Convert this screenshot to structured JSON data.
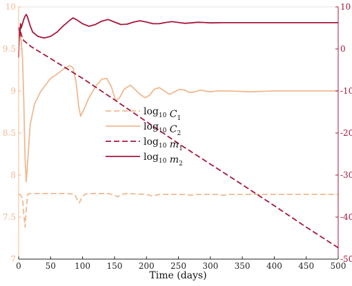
{
  "chart_data": {
    "type": "line",
    "xlabel": "Time (days)",
    "x_ticks": [
      0,
      50,
      100,
      150,
      200,
      250,
      300,
      350,
      400,
      450,
      500
    ],
    "x_range": [
      0,
      500
    ],
    "y_left": {
      "range": [
        7,
        10
      ],
      "ticks": [
        7,
        7.5,
        8,
        8.5,
        9,
        9.5,
        10
      ],
      "tick_labels": [
        "7",
        "7.5",
        "8",
        "8.5",
        "9",
        "9.5",
        "10"
      ],
      "color": "#f0b890"
    },
    "y_right": {
      "range": [
        -50,
        10
      ],
      "ticks": [
        -50,
        -40,
        -30,
        -20,
        -10,
        0,
        10
      ],
      "tick_labels": [
        "-50",
        "-40",
        "-30",
        "-20",
        "-10",
        "0",
        "10"
      ],
      "color": "#a5153a"
    },
    "grid": false,
    "legend_position": "center-left",
    "series": [
      {
        "name": "log10 C1",
        "legend_base": "log",
        "legend_base_sub": "10",
        "legend_var": "C",
        "legend_var_sub": "1",
        "axis": "left",
        "color": "#f0b890",
        "dash": "dashed",
        "points": [
          [
            0,
            7.77
          ],
          [
            2,
            7.77
          ],
          [
            4,
            7.75
          ],
          [
            6,
            7.72
          ],
          [
            8,
            7.55
          ],
          [
            10,
            7.38
          ],
          [
            12,
            7.6
          ],
          [
            14,
            7.77
          ],
          [
            18,
            7.78
          ],
          [
            25,
            7.78
          ],
          [
            50,
            7.78
          ],
          [
            75,
            7.78
          ],
          [
            88,
            7.77
          ],
          [
            92,
            7.7
          ],
          [
            95,
            7.67
          ],
          [
            98,
            7.72
          ],
          [
            103,
            7.77
          ],
          [
            110,
            7.78
          ],
          [
            140,
            7.78
          ],
          [
            150,
            7.76
          ],
          [
            155,
            7.74
          ],
          [
            160,
            7.77
          ],
          [
            170,
            7.78
          ],
          [
            200,
            7.77
          ],
          [
            210,
            7.75
          ],
          [
            220,
            7.77
          ],
          [
            260,
            7.77
          ],
          [
            270,
            7.76
          ],
          [
            280,
            7.77
          ],
          [
            310,
            7.77
          ],
          [
            320,
            7.76
          ],
          [
            330,
            7.77
          ],
          [
            500,
            7.77
          ]
        ]
      },
      {
        "name": "log10 C2",
        "legend_base": "log",
        "legend_base_sub": "10",
        "legend_var": "C",
        "legend_var_sub": "2",
        "axis": "left",
        "color": "#f0b890",
        "dash": "solid",
        "points": [
          [
            0,
            9.55
          ],
          [
            2,
            9.65
          ],
          [
            4,
            9.6
          ],
          [
            6,
            9.4
          ],
          [
            8,
            8.9
          ],
          [
            10,
            8.2
          ],
          [
            12,
            7.92
          ],
          [
            14,
            8.15
          ],
          [
            18,
            8.6
          ],
          [
            25,
            8.85
          ],
          [
            35,
            9.0
          ],
          [
            50,
            9.15
          ],
          [
            60,
            9.2
          ],
          [
            70,
            9.26
          ],
          [
            80,
            9.3
          ],
          [
            85,
            9.28
          ],
          [
            90,
            9.1
          ],
          [
            94,
            8.82
          ],
          [
            97,
            8.7
          ],
          [
            102,
            8.78
          ],
          [
            110,
            8.92
          ],
          [
            120,
            9.05
          ],
          [
            130,
            9.14
          ],
          [
            138,
            9.15
          ],
          [
            145,
            9.05
          ],
          [
            152,
            8.88
          ],
          [
            158,
            8.92
          ],
          [
            165,
            9.02
          ],
          [
            175,
            9.07
          ],
          [
            182,
            9.02
          ],
          [
            190,
            8.96
          ],
          [
            198,
            8.92
          ],
          [
            205,
            8.95
          ],
          [
            212,
            9.02
          ],
          [
            220,
            9.04
          ],
          [
            228,
            9.0
          ],
          [
            236,
            8.96
          ],
          [
            244,
            8.99
          ],
          [
            252,
            9.02
          ],
          [
            260,
            9.01
          ],
          [
            268,
            8.98
          ],
          [
            276,
            8.99
          ],
          [
            284,
            9.01
          ],
          [
            292,
            9.0
          ],
          [
            300,
            8.99
          ],
          [
            310,
            9.0
          ],
          [
            330,
            9.0
          ],
          [
            360,
            8.99
          ],
          [
            400,
            9.0
          ],
          [
            450,
            9.0
          ],
          [
            500,
            9.0
          ]
        ]
      },
      {
        "name": "log10 m1",
        "legend_base": "log",
        "legend_base_sub": "10",
        "legend_var": "m",
        "legend_var_sub": "1",
        "axis": "right",
        "color": "#a5153a",
        "dash": "dashed",
        "points": [
          [
            0,
            5
          ],
          [
            1,
            3
          ],
          [
            2,
            4.5
          ],
          [
            4,
            3.5
          ],
          [
            6,
            2.5
          ],
          [
            8,
            2
          ],
          [
            12,
            1.5
          ],
          [
            20,
            0.5
          ],
          [
            50,
            -2.3
          ],
          [
            100,
            -7
          ],
          [
            150,
            -12.1
          ],
          [
            200,
            -17.3
          ],
          [
            250,
            -22.5
          ],
          [
            300,
            -27.4
          ],
          [
            350,
            -32.3
          ],
          [
            400,
            -37.3
          ],
          [
            450,
            -42.4
          ],
          [
            500,
            -47.3
          ]
        ]
      },
      {
        "name": "log10 m2",
        "legend_base": "log",
        "legend_base_sub": "10",
        "legend_var": "m",
        "legend_var_sub": "2",
        "axis": "right",
        "color": "#a5153a",
        "dash": "solid",
        "points": [
          [
            0,
            -2
          ],
          [
            1,
            5
          ],
          [
            2,
            3
          ],
          [
            3,
            6
          ],
          [
            4,
            5
          ],
          [
            6,
            6
          ],
          [
            8,
            7
          ],
          [
            10,
            7.8
          ],
          [
            12,
            8.2
          ],
          [
            14,
            7.5
          ],
          [
            18,
            5.5
          ],
          [
            22,
            4.0
          ],
          [
            30,
            3.0
          ],
          [
            40,
            2.6
          ],
          [
            50,
            3.0
          ],
          [
            60,
            4.0
          ],
          [
            70,
            5.5
          ],
          [
            80,
            6.8
          ],
          [
            85,
            7.4
          ],
          [
            90,
            7.0
          ],
          [
            100,
            6.0
          ],
          [
            110,
            5.4
          ],
          [
            120,
            5.8
          ],
          [
            130,
            6.6
          ],
          [
            140,
            7.0
          ],
          [
            150,
            6.4
          ],
          [
            160,
            5.8
          ],
          [
            170,
            5.9
          ],
          [
            180,
            6.4
          ],
          [
            190,
            6.7
          ],
          [
            200,
            6.4
          ],
          [
            210,
            6.0
          ],
          [
            220,
            6.0
          ],
          [
            230,
            6.3
          ],
          [
            240,
            6.5
          ],
          [
            250,
            6.3
          ],
          [
            260,
            6.1
          ],
          [
            270,
            6.2
          ],
          [
            280,
            6.35
          ],
          [
            290,
            6.3
          ],
          [
            300,
            6.2
          ],
          [
            320,
            6.25
          ],
          [
            350,
            6.25
          ],
          [
            400,
            6.25
          ],
          [
            450,
            6.25
          ],
          [
            500,
            6.25
          ]
        ]
      }
    ]
  }
}
